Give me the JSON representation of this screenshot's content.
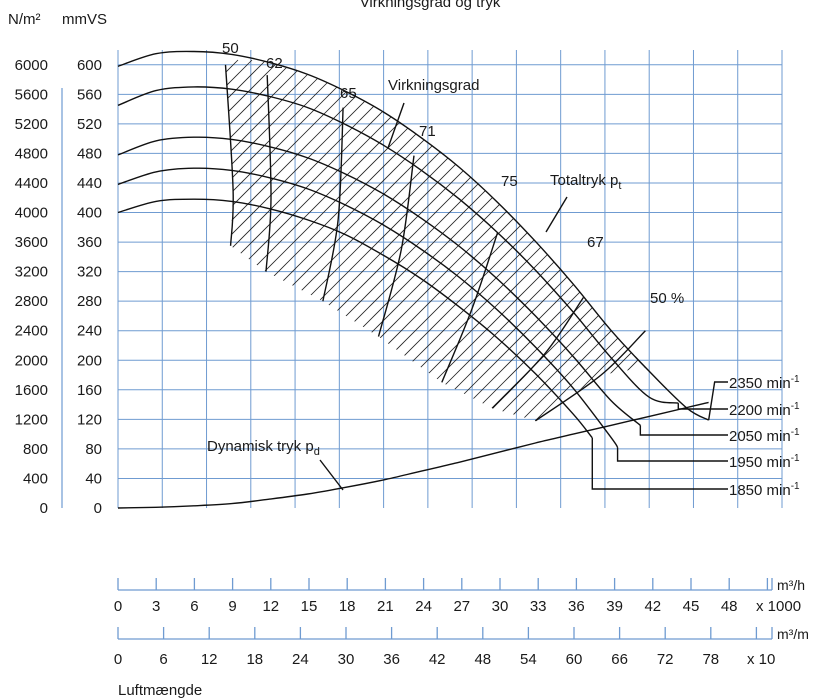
{
  "chart_data": {
    "type": "line",
    "title": "Virkningsgrad og tryk",
    "xlabel": "Luftmængde",
    "ylabel_left": "N/m²",
    "ylabel_right": "mmVS",
    "y_pressure_ticks": [
      "6000",
      "5600",
      "5200",
      "4800",
      "4400",
      "4000",
      "3600",
      "3200",
      "2800",
      "2400",
      "2000",
      "1600",
      "1200",
      "800",
      "400",
      "0"
    ],
    "y_mmvs_ticks": [
      "600",
      "560",
      "520",
      "480",
      "440",
      "400",
      "360",
      "320",
      "280",
      "240",
      "200",
      "160",
      "120",
      "80",
      "40",
      "0"
    ],
    "ylim_mmvs": [
      0,
      620
    ],
    "xlim_m3h_thousands": [
      0,
      52.5
    ],
    "x_scale_m3h": {
      "unit": "m³/h",
      "multiplier": "x 1000",
      "ticks": [
        "0",
        "3",
        "6",
        "9",
        "12",
        "15",
        "18",
        "21",
        "24",
        "27",
        "30",
        "33",
        "36",
        "39",
        "42",
        "45",
        "48"
      ]
    },
    "x_scale_m3m": {
      "unit": "m³/m",
      "multiplier": "x 10",
      "ticks": [
        "0",
        "6",
        "12",
        "18",
        "24",
        "30",
        "36",
        "42",
        "48",
        "54",
        "60",
        "66",
        "72",
        "78"
      ]
    },
    "speed_curves": [
      {
        "name": "1850 min⁻¹",
        "points": [
          [
            0,
            400
          ],
          [
            3,
            415
          ],
          [
            6,
            418
          ],
          [
            9,
            415
          ],
          [
            12,
            405
          ],
          [
            15,
            390
          ],
          [
            18,
            370
          ],
          [
            21,
            342
          ],
          [
            24,
            310
          ],
          [
            27,
            272
          ],
          [
            30,
            230
          ],
          [
            33,
            182
          ],
          [
            36,
            127
          ],
          [
            37.5,
            95
          ]
        ]
      },
      {
        "name": "1950 min⁻¹",
        "points": [
          [
            0,
            438
          ],
          [
            3,
            455
          ],
          [
            6,
            460
          ],
          [
            9,
            457
          ],
          [
            12,
            447
          ],
          [
            15,
            432
          ],
          [
            18,
            410
          ],
          [
            21,
            383
          ],
          [
            24,
            350
          ],
          [
            27,
            312
          ],
          [
            30,
            268
          ],
          [
            33,
            218
          ],
          [
            36,
            162
          ],
          [
            39,
            95
          ],
          [
            39.5,
            82
          ]
        ]
      },
      {
        "name": "2050 min⁻¹",
        "points": [
          [
            0,
            478
          ],
          [
            3,
            497
          ],
          [
            6,
            502
          ],
          [
            9,
            499
          ],
          [
            12,
            489
          ],
          [
            15,
            474
          ],
          [
            18,
            452
          ],
          [
            21,
            425
          ],
          [
            24,
            392
          ],
          [
            27,
            354
          ],
          [
            30,
            310
          ],
          [
            33,
            260
          ],
          [
            36,
            205
          ],
          [
            39,
            145
          ],
          [
            41.3,
            112
          ]
        ]
      },
      {
        "name": "2200 min⁻¹",
        "points": [
          [
            0,
            545
          ],
          [
            3,
            565
          ],
          [
            6,
            570
          ],
          [
            9,
            567
          ],
          [
            12,
            557
          ],
          [
            15,
            542
          ],
          [
            18,
            519
          ],
          [
            21,
            491
          ],
          [
            24,
            457
          ],
          [
            27,
            418
          ],
          [
            30,
            373
          ],
          [
            33,
            322
          ],
          [
            36,
            265
          ],
          [
            39,
            203
          ],
          [
            42,
            150
          ],
          [
            44.3,
            142
          ]
        ]
      },
      {
        "name": "2350 min⁻¹",
        "points": [
          [
            0,
            598
          ],
          [
            3,
            615
          ],
          [
            6,
            618
          ],
          [
            9,
            614
          ],
          [
            12,
            603
          ],
          [
            15,
            587
          ],
          [
            18,
            564
          ],
          [
            21,
            536
          ],
          [
            24,
            501
          ],
          [
            27,
            461
          ],
          [
            30,
            414
          ],
          [
            33,
            361
          ],
          [
            36,
            303
          ],
          [
            39,
            240
          ],
          [
            42,
            185
          ],
          [
            45,
            135
          ],
          [
            46.7,
            119
          ]
        ]
      }
    ],
    "dynamic_pressure": {
      "name": "Dynamisk tryk p_d",
      "points": [
        [
          0,
          0
        ],
        [
          3,
          1
        ],
        [
          6,
          3
        ],
        [
          9,
          6
        ],
        [
          12,
          12
        ],
        [
          15,
          19
        ],
        [
          18,
          28
        ],
        [
          21,
          38
        ],
        [
          24,
          50
        ],
        [
          27,
          62
        ],
        [
          30,
          75
        ],
        [
          33,
          88
        ],
        [
          36,
          100
        ],
        [
          39,
          112
        ],
        [
          42,
          124
        ],
        [
          45,
          136
        ],
        [
          46.7,
          143
        ]
      ]
    },
    "efficiency_lines": [
      {
        "label": "50",
        "points": [
          [
            8.5,
            600
          ],
          [
            9.1,
            430
          ],
          [
            8.9,
            355
          ]
        ]
      },
      {
        "label": "62",
        "points": [
          [
            11.8,
            586
          ],
          [
            12.1,
            420
          ],
          [
            11.7,
            320
          ]
        ]
      },
      {
        "label": "65",
        "points": [
          [
            17.8,
            542
          ],
          [
            17.4,
            390
          ],
          [
            16.2,
            280
          ]
        ]
      },
      {
        "label": "71",
        "points": [
          [
            23.4,
            477
          ],
          [
            22.4,
            350
          ],
          [
            20.6,
            232
          ]
        ]
      },
      {
        "label": "75",
        "points": [
          [
            30,
            372
          ],
          [
            28,
            270
          ],
          [
            25.6,
            170
          ]
        ]
      },
      {
        "label": "67",
        "points": [
          [
            36.8,
            285
          ],
          [
            33.8,
            210
          ],
          [
            29.6,
            135
          ]
        ]
      },
      {
        "label": "50 %",
        "points": [
          [
            41.7,
            240
          ],
          [
            38.2,
            180
          ],
          [
            33,
            118
          ]
        ]
      }
    ],
    "annotations": {
      "virkningsgrad": "Virkningsgrad",
      "totaltryk_text": "Totaltryk p",
      "totaltryk_sub": "t",
      "dynamisk_text": "Dynamisk tryk p",
      "dynamisk_sub": "d",
      "speed_text": [
        "2350 min",
        "2200 min",
        "2050 min",
        "1950 min",
        "1850 min"
      ],
      "speed_sup": "-1"
    },
    "grid": true,
    "legend": "none"
  }
}
